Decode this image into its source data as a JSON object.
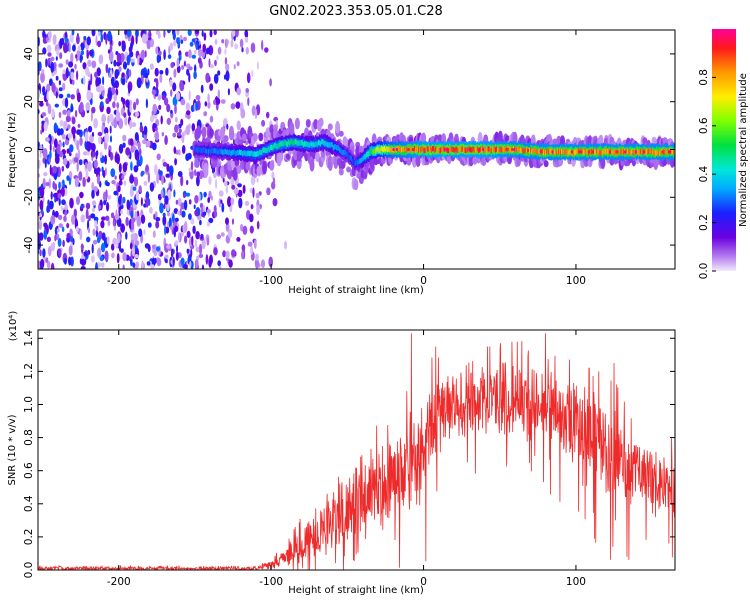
{
  "figure": {
    "title": "GN02.2023.353.05.01.C28"
  },
  "colors": {
    "snr_line": "#ee2a2a",
    "background": "#ffffff"
  },
  "chart_data": [
    {
      "type": "heatmap",
      "name": "spectrogram",
      "xlabel": "Height of straight line (km)",
      "ylabel": "Frequency (Hz)",
      "xlim": [
        -253,
        165
      ],
      "ylim": [
        -50,
        50
      ],
      "xticks": [
        -200,
        -100,
        0,
        100
      ],
      "yticks": [
        -40,
        -20,
        0,
        20,
        40
      ],
      "xtick_labels": [
        "-200",
        "-100",
        "0",
        "100"
      ],
      "ytick_labels": [
        "-40",
        "-20",
        "0",
        "20",
        "40"
      ],
      "colorbar": {
        "label": "Normalized spectral amplitude",
        "range": [
          0.0,
          1.0
        ],
        "ticks": [
          0.0,
          0.2,
          0.4,
          0.6,
          0.8
        ],
        "tick_labels": [
          "0.0",
          "0.2",
          "0.4",
          "0.6",
          "0.8"
        ],
        "colormap": "rainbow (white-purple-blue-cyan-green-yellow-red-magenta)"
      },
      "signal_ridge": {
        "description": "main spectral line frequency vs height",
        "x": [
          -150,
          -130,
          -110,
          -95,
          -85,
          -75,
          -65,
          -55,
          -50,
          -45,
          -40,
          -35,
          -30,
          -20,
          -10,
          0,
          20,
          40,
          60,
          80,
          100,
          120,
          140,
          165
        ],
        "y": [
          0,
          -1,
          -2,
          2,
          3,
          2,
          3,
          0,
          -2,
          -6,
          -4,
          -1,
          0,
          0,
          0,
          0,
          0,
          0,
          0,
          -1,
          -1,
          -1,
          -1,
          -1
        ],
        "peak_amplitude": [
          0.3,
          0.35,
          0.45,
          0.5,
          0.5,
          0.45,
          0.45,
          0.35,
          0.3,
          0.3,
          0.4,
          0.55,
          0.7,
          0.85,
          0.9,
          0.95,
          0.95,
          0.95,
          0.9,
          0.9,
          0.9,
          0.9,
          0.9,
          0.9
        ]
      },
      "noise_region": {
        "x_range": [
          -253,
          -105
        ],
        "amplitude_range": [
          0.02,
          0.3
        ]
      }
    },
    {
      "type": "line",
      "name": "snr",
      "xlabel": "Height of straight line (km)",
      "ylabel": "SNR (10 * v/v)",
      "yscale_label": "(x10⁴)",
      "xlim": [
        -253,
        165
      ],
      "ylim": [
        0,
        1.45
      ],
      "xticks": [
        -200,
        -100,
        0,
        100
      ],
      "yticks": [
        0.0,
        0.2,
        0.4,
        0.6,
        0.8,
        1.0,
        1.2,
        1.4
      ],
      "xtick_labels": [
        "-200",
        "-100",
        "0",
        "100"
      ],
      "ytick_labels": [
        "0.0",
        "0.2",
        "0.4",
        "0.6",
        "0.8",
        "1.0",
        "1.2",
        "1.4"
      ],
      "envelope": {
        "x": [
          -253,
          -200,
          -150,
          -110,
          -100,
          -90,
          -80,
          -70,
          -60,
          -50,
          -40,
          -30,
          -20,
          -10,
          0,
          10,
          20,
          30,
          40,
          50,
          60,
          70,
          80,
          90,
          100,
          110,
          120,
          130,
          140,
          150,
          165
        ],
        "mean": [
          0.01,
          0.01,
          0.01,
          0.01,
          0.03,
          0.08,
          0.15,
          0.22,
          0.3,
          0.38,
          0.45,
          0.5,
          0.55,
          0.62,
          0.75,
          0.92,
          1.0,
          1.02,
          1.03,
          1.03,
          1.02,
          1.0,
          0.96,
          0.93,
          0.9,
          0.82,
          0.72,
          0.65,
          0.6,
          0.55,
          0.5
        ],
        "spread": [
          0.01,
          0.01,
          0.01,
          0.01,
          0.03,
          0.05,
          0.1,
          0.15,
          0.2,
          0.22,
          0.25,
          0.25,
          0.25,
          0.28,
          0.3,
          0.22,
          0.18,
          0.18,
          0.18,
          0.2,
          0.2,
          0.22,
          0.22,
          0.22,
          0.24,
          0.25,
          0.26,
          0.25,
          0.22,
          0.2,
          0.2
        ]
      },
      "notable_peaks": {
        "x": [
          -8,
          8,
          42,
          58,
          80,
          115,
          125
        ],
        "y": [
          1.43,
          1.35,
          1.35,
          1.38,
          1.43,
          1.2,
          1.25
        ]
      }
    }
  ]
}
